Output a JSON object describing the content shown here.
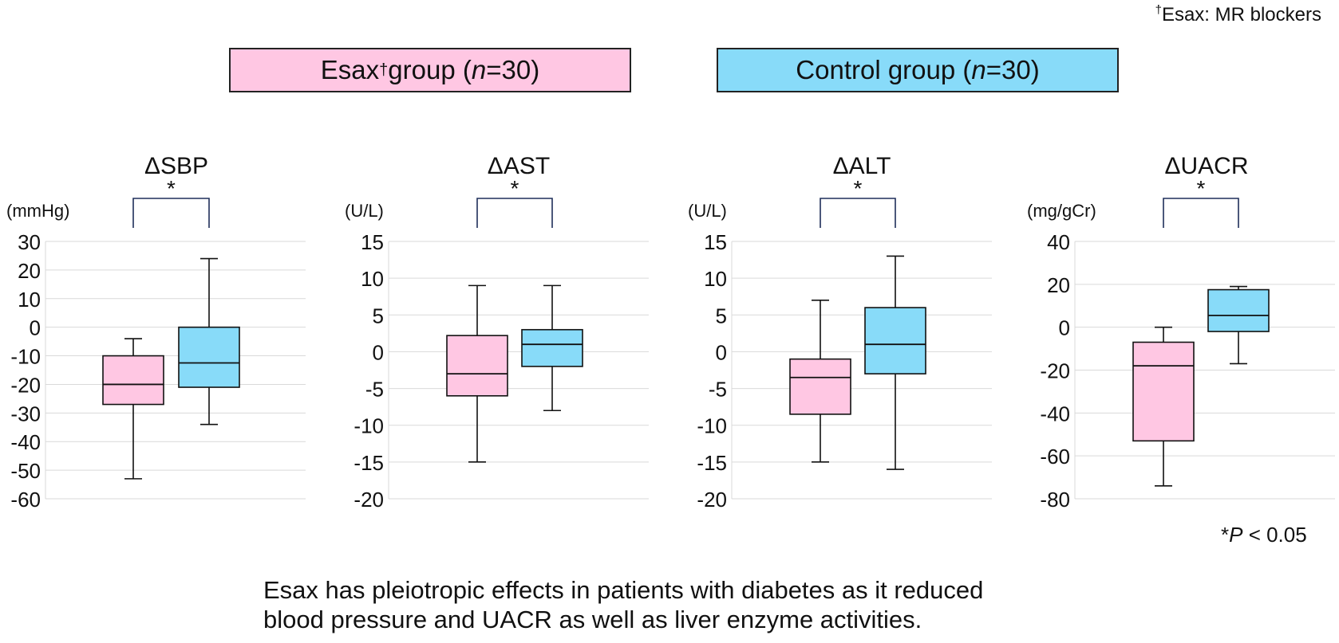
{
  "footnote_top": {
    "dagger": "†",
    "text": "Esax: MR blockers"
  },
  "legend": [
    {
      "label_pre": "Esax",
      "sup": "†",
      "label_mid": " group (",
      "n_italic": "n",
      "label_post": "=30)",
      "color": "#ffc7e3"
    },
    {
      "label_pre": "Control group (",
      "n_italic": "n",
      "label_post": "=30)",
      "color": "#88dbf9"
    }
  ],
  "colors": {
    "esax": "#ffc7e3",
    "control": "#88dbf9",
    "bracket": "#1f2f5a",
    "grid": "#d9d9d9"
  },
  "significance_mark": "*",
  "p_note": {
    "star": "*",
    "p": "P",
    "text": " < 0.05"
  },
  "caption": [
    "Esax has pleiotropic effects in patients with diabetes as it reduced",
    "blood pressure and UACR as well as liver enzyme activities."
  ],
  "chart_data": [
    {
      "type": "boxplot",
      "title": "ΔSBP",
      "unit": "(mmHg)",
      "ylim": [
        -60,
        30
      ],
      "yticks": [
        30,
        20,
        10,
        0,
        -10,
        -20,
        -30,
        -40,
        -50,
        -60
      ],
      "grid": true,
      "series": [
        {
          "name": "Esax",
          "min": -53,
          "q1": -27,
          "median": -20,
          "q3": -10,
          "max": -4
        },
        {
          "name": "Control",
          "min": -34,
          "q1": -21,
          "median": -12.5,
          "q3": 0,
          "max": 24
        }
      ]
    },
    {
      "type": "boxplot",
      "title": "ΔAST",
      "unit": "(U/L)",
      "ylim": [
        -20,
        15
      ],
      "yticks": [
        15,
        10,
        5,
        0,
        -5,
        -10,
        -15,
        -20
      ],
      "grid": true,
      "series": [
        {
          "name": "Esax",
          "min": -15,
          "q1": -6,
          "median": -3,
          "q3": 2.2,
          "max": 9
        },
        {
          "name": "Control",
          "min": -8,
          "q1": -2,
          "median": 1,
          "q3": 3,
          "max": 9
        }
      ]
    },
    {
      "type": "boxplot",
      "title": "ΔALT",
      "unit": "(U/L)",
      "ylim": [
        -20,
        15
      ],
      "yticks": [
        15,
        10,
        5,
        0,
        -5,
        -10,
        -15,
        -20
      ],
      "grid": true,
      "series": [
        {
          "name": "Esax",
          "min": -15,
          "q1": -8.5,
          "median": -3.5,
          "q3": -1,
          "max": 7
        },
        {
          "name": "Control",
          "min": -16,
          "q1": -3,
          "median": 1,
          "q3": 6,
          "max": 13
        }
      ]
    },
    {
      "type": "boxplot",
      "title": "ΔUACR",
      "unit": "(mg/gCr)",
      "ylim": [
        -80,
        40
      ],
      "yticks": [
        40,
        20,
        0,
        -20,
        -40,
        -60,
        -80
      ],
      "grid": true,
      "series": [
        {
          "name": "Esax",
          "min": -74,
          "q1": -53,
          "median": -18,
          "q3": -7,
          "max": 0
        },
        {
          "name": "Control",
          "min": -17,
          "q1": -2,
          "median": 5.5,
          "q3": 17.5,
          "max": 19
        }
      ]
    }
  ]
}
